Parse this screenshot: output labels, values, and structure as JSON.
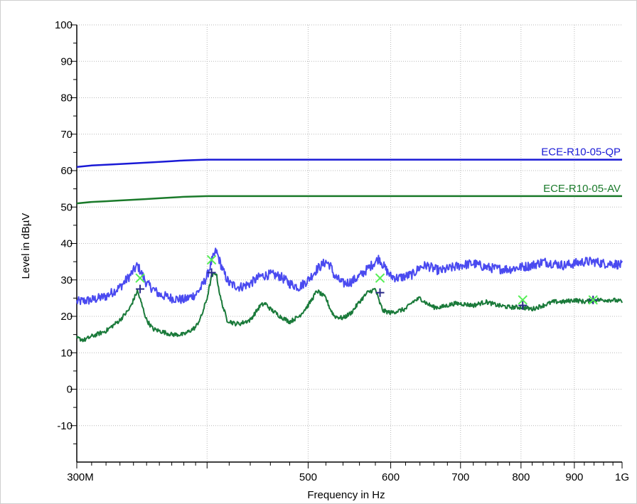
{
  "chart_data": {
    "type": "line",
    "xlabel": "Frequency in Hz",
    "ylabel": "Level in dBµV",
    "x_scale": "log",
    "xlim": [
      300000000,
      1000000000
    ],
    "ylim": [
      -20,
      100
    ],
    "grid": true,
    "y_ticks": [
      100,
      90,
      80,
      70,
      60,
      50,
      40,
      30,
      20,
      10,
      0,
      -10
    ],
    "x_major_ticks": [
      {
        "value": 300000000,
        "label": "300M"
      },
      {
        "value": 400000000,
        "label": ""
      },
      {
        "value": 500000000,
        "label": "500"
      },
      {
        "value": 600000000,
        "label": "600"
      },
      {
        "value": 700000000,
        "label": "700"
      },
      {
        "value": 800000000,
        "label": "800"
      },
      {
        "value": 900000000,
        "label": "900"
      },
      {
        "value": 1000000000,
        "label": "1G"
      }
    ],
    "colors": {
      "qp_limit": "#1a1ad6",
      "av_limit": "#1a7a2a",
      "qp_trace": "#4a4af0",
      "av_trace": "#1a7a3a",
      "qp_marker": "#2a2a8a",
      "av_marker": "#55ee55"
    },
    "limits": [
      {
        "name": "ECE-R10-05-QP",
        "color_key": "qp_limit",
        "x": [
          300,
          310,
          320,
          330,
          340,
          350,
          360,
          370,
          380,
          390,
          400,
          1000
        ],
        "y": [
          61,
          61.4,
          61.6,
          61.8,
          62.0,
          62.2,
          62.4,
          62.6,
          62.8,
          62.9,
          63,
          63
        ]
      },
      {
        "name": "ECE-R10-05-AV",
        "color_key": "av_limit",
        "x": [
          300,
          310,
          320,
          330,
          340,
          350,
          360,
          370,
          380,
          390,
          400,
          1000
        ],
        "y": [
          51,
          51.4,
          51.6,
          51.8,
          52.0,
          52.2,
          52.4,
          52.6,
          52.8,
          52.9,
          53,
          53
        ]
      }
    ],
    "series": [
      {
        "key": "qp_trace",
        "noise": 1.3,
        "x": [
          300,
          310,
          320,
          330,
          337,
          343,
          350,
          360,
          370,
          380,
          390,
          395,
          400,
          404,
          408,
          415,
          420,
          430,
          440,
          450,
          460,
          470,
          480,
          490,
          500,
          510,
          520,
          525,
          530,
          540,
          550,
          560,
          570,
          580,
          585,
          590,
          600,
          610,
          620,
          630,
          640,
          650,
          660,
          670,
          680,
          690,
          700,
          720,
          740,
          760,
          780,
          800,
          820,
          840,
          860,
          880,
          900,
          920,
          940,
          960,
          980,
          1000
        ],
        "y": [
          24,
          24.5,
          25.5,
          28,
          31,
          34,
          29,
          26,
          25,
          24.5,
          26,
          28,
          31,
          35,
          38,
          32,
          29,
          28,
          29,
          31,
          31.5,
          31,
          29,
          28,
          30,
          33,
          35,
          34,
          31,
          29,
          29.5,
          31,
          33,
          35,
          36,
          34,
          31,
          30.5,
          31,
          31.5,
          33.5,
          34,
          33,
          32.5,
          33,
          33.5,
          34,
          34.5,
          33.5,
          33,
          33,
          33.5,
          34,
          35,
          34.5,
          34,
          34.5,
          35,
          35,
          34.5,
          34.5,
          34
        ]
      },
      {
        "key": "av_trace",
        "noise": 0.6,
        "x": [
          300,
          305,
          310,
          320,
          330,
          337,
          343,
          350,
          355,
          360,
          370,
          380,
          390,
          395,
          400,
          404,
          408,
          412,
          418,
          425,
          430,
          440,
          450,
          455,
          460,
          470,
          480,
          490,
          500,
          510,
          520,
          525,
          530,
          540,
          550,
          560,
          570,
          580,
          585,
          590,
          600,
          610,
          620,
          630,
          640,
          650,
          660,
          670,
          680,
          690,
          700,
          720,
          740,
          760,
          780,
          800,
          820,
          840,
          860,
          880,
          900,
          920,
          940,
          960,
          980,
          1000
        ],
        "y": [
          14,
          13.5,
          14.5,
          16,
          19,
          22,
          27,
          19,
          16.5,
          16,
          15,
          15,
          17,
          20,
          25,
          31,
          32,
          25,
          19,
          18,
          18,
          19,
          23,
          23.5,
          22,
          20,
          18.5,
          20,
          23,
          27,
          25,
          22,
          20,
          19.5,
          21,
          24,
          26.5,
          27.5,
          24,
          21.5,
          21,
          21.5,
          22,
          24,
          25,
          23.5,
          22.5,
          22.5,
          23,
          23.5,
          23.5,
          23,
          24,
          23,
          22.5,
          22.5,
          22,
          23,
          24,
          24,
          24.5,
          24,
          24.5,
          24.5,
          24.5,
          24
        ]
      }
    ],
    "markers": [
      {
        "key": "qp_marker",
        "symbol": "+",
        "points": [
          [
            345,
            27.5
          ],
          [
            404,
            32
          ],
          [
            586,
            26.5
          ],
          [
            803,
            23
          ],
          [
            938,
            24.5
          ]
        ]
      },
      {
        "key": "av_marker",
        "symbol": "x",
        "points": [
          [
            345,
            30.5
          ],
          [
            404,
            35.5
          ],
          [
            586,
            30.5
          ],
          [
            803,
            24.5
          ],
          [
            938,
            24.5
          ]
        ]
      }
    ]
  }
}
